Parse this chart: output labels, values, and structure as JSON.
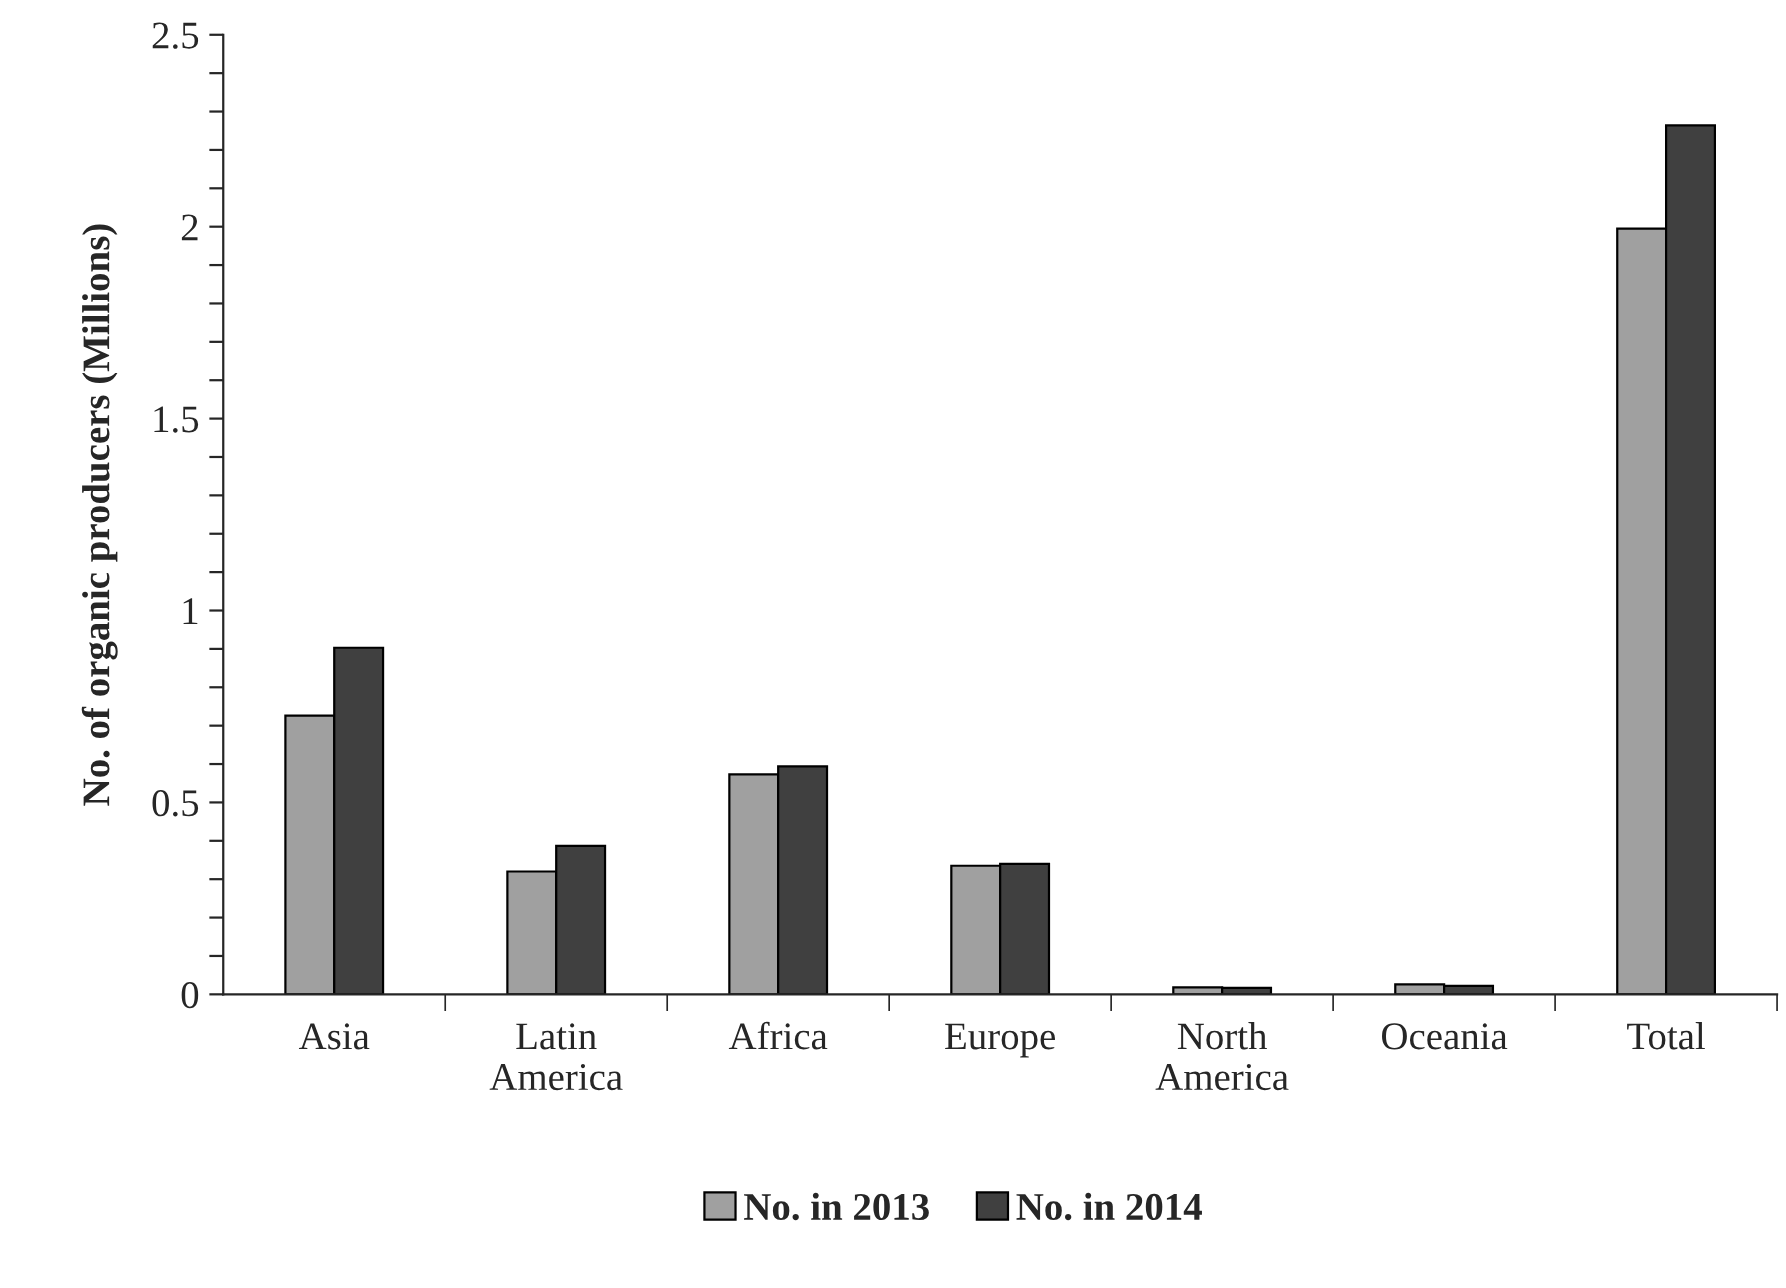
{
  "chart_data": {
    "type": "bar",
    "ylabel": "No. of organic producers (Millions)",
    "categories": [
      "Asia",
      "Latin\nAmerica",
      "Africa",
      "Europe",
      "North\nAmerica",
      "Oceania",
      "Total"
    ],
    "series": [
      {
        "name": "No. in 2013",
        "color": "#a0a0a0",
        "values": [
          0.726,
          0.32,
          0.573,
          0.335,
          0.018,
          0.026,
          1.995
        ]
      },
      {
        "name": "No. in 2014",
        "color": "#404040",
        "values": [
          0.903,
          0.387,
          0.594,
          0.34,
          0.017,
          0.022,
          2.264
        ]
      }
    ],
    "ylim": [
      0,
      2.5
    ],
    "yticks": [
      0,
      {
        "value": 0.1,
        "label": null
      },
      {
        "value": 0.2,
        "label": null
      },
      {
        "value": 0.3,
        "label": null
      },
      {
        "value": 0.4,
        "label": null
      },
      0.5,
      {
        "value": 0.6,
        "label": null
      },
      {
        "value": 0.7,
        "label": null
      },
      {
        "value": 0.8,
        "label": null
      },
      {
        "value": 0.9,
        "label": null
      },
      1,
      {
        "value": 1.1,
        "label": null
      },
      {
        "value": 1.2,
        "label": null
      },
      {
        "value": 1.3,
        "label": null
      },
      {
        "value": 1.4,
        "label": null
      },
      1.5,
      {
        "value": 1.6,
        "label": null
      },
      {
        "value": 1.7,
        "label": null
      },
      {
        "value": 1.8,
        "label": null
      },
      {
        "value": 1.9,
        "label": null
      },
      2,
      {
        "value": 2.1,
        "label": null
      },
      {
        "value": 2.2,
        "label": null
      },
      {
        "value": 2.3,
        "label": null
      },
      {
        "value": 2.4,
        "label": null
      },
      2.5
    ],
    "grid": false,
    "legend": "bottom"
  }
}
